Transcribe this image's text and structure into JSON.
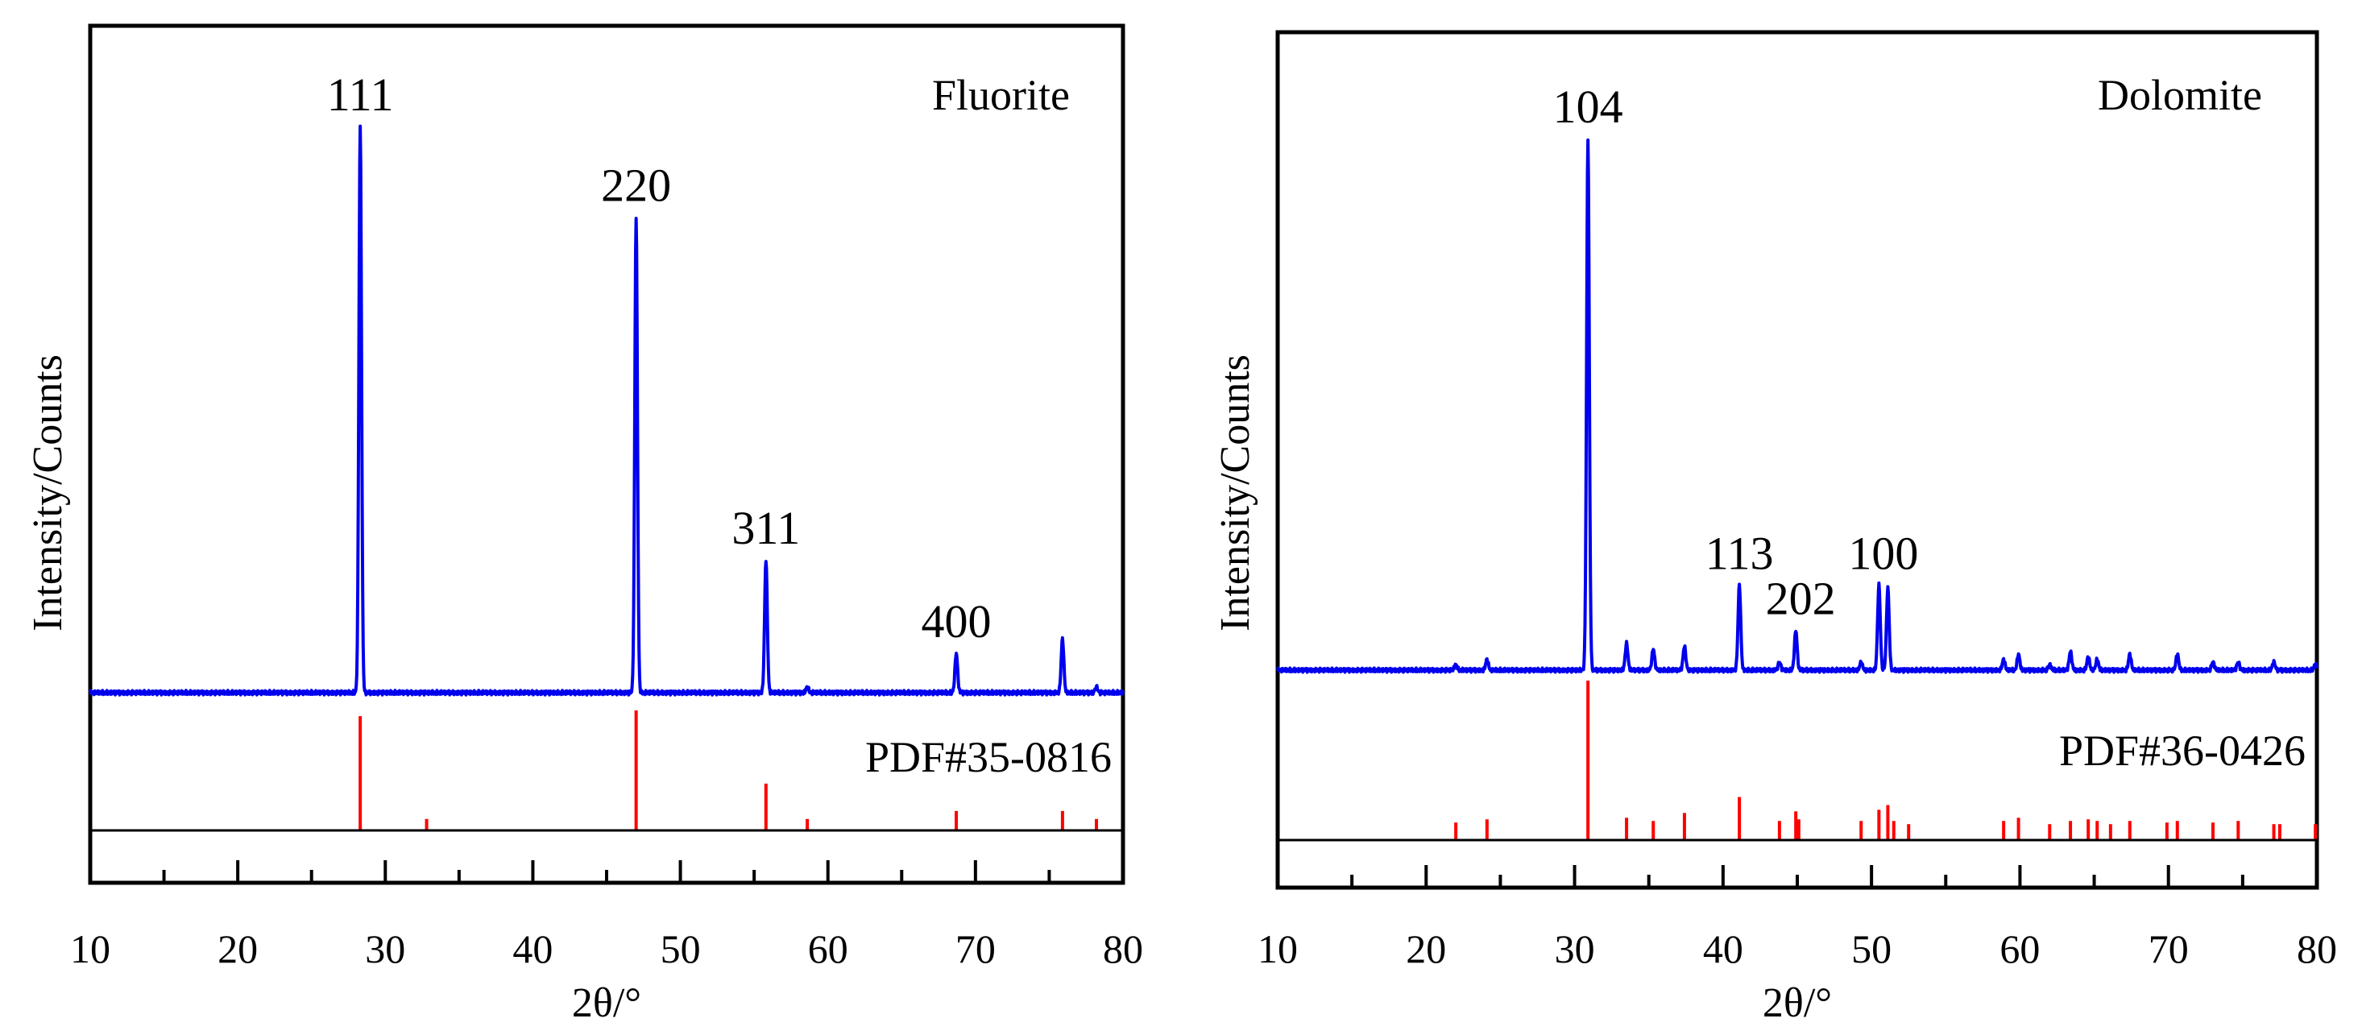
{
  "chart_data": [
    {
      "type": "line",
      "name": "Fluorite",
      "xlabel": "2θ/°",
      "ylabel": "Intensity/Counts",
      "xlim": [
        10,
        80
      ],
      "xticks": [
        10,
        20,
        30,
        40,
        50,
        60,
        70,
        80
      ],
      "xticks_minor": [
        15,
        25,
        35,
        45,
        55,
        65,
        75
      ],
      "peak_labels": [
        {
          "text": "111",
          "x": 28.3
        },
        {
          "text": "220",
          "x": 47.0
        },
        {
          "text": "311",
          "x": 55.8
        },
        {
          "text": "400",
          "x": 68.7
        }
      ],
      "series": [
        {
          "name": "Fluorite XRD",
          "color": "#0000ee",
          "baseline": 0.05,
          "peaks": [
            {
              "x": 28.3,
              "y": 1.0
            },
            {
              "x": 47.0,
              "y": 0.84
            },
            {
              "x": 55.8,
              "y": 0.235
            },
            {
              "x": 58.6,
              "y": 0.01
            },
            {
              "x": 68.7,
              "y": 0.07
            },
            {
              "x": 75.9,
              "y": 0.095
            },
            {
              "x": 78.2,
              "y": 0.01
            }
          ]
        },
        {
          "name": "PDF#35-0816",
          "color": "#ff0000",
          "type": "stick",
          "peaks": [
            {
              "x": 28.3,
              "y": 1.0
            },
            {
              "x": 32.8,
              "y": 0.1
            },
            {
              "x": 47.0,
              "y": 1.05
            },
            {
              "x": 55.8,
              "y": 0.41
            },
            {
              "x": 58.6,
              "y": 0.1
            },
            {
              "x": 68.7,
              "y": 0.17
            },
            {
              "x": 75.9,
              "y": 0.17
            },
            {
              "x": 78.2,
              "y": 0.1
            }
          ]
        }
      ],
      "reference_label": "PDF#35-0816"
    },
    {
      "type": "line",
      "name": "Dolomite",
      "xlabel": "2θ/°",
      "ylabel": "Intensity/Counts",
      "xlim": [
        10,
        80
      ],
      "xticks": [
        10,
        20,
        30,
        40,
        50,
        60,
        70,
        80
      ],
      "xticks_minor": [
        15,
        25,
        35,
        45,
        55,
        65,
        75
      ],
      "peak_labels": [
        {
          "text": "104",
          "x": 30.9
        },
        {
          "text": "113",
          "x": 41.1
        },
        {
          "text": "202",
          "x": 44.9
        },
        {
          "text": "100",
          "x": 50.8
        }
      ],
      "series": [
        {
          "name": "Dolomite XRD",
          "color": "#0000ee",
          "baseline": 0.03,
          "peaks": [
            {
              "x": 22.0,
              "y": 0.01
            },
            {
              "x": 24.1,
              "y": 0.02
            },
            {
              "x": 30.9,
              "y": 1.0
            },
            {
              "x": 33.5,
              "y": 0.05
            },
            {
              "x": 35.3,
              "y": 0.04
            },
            {
              "x": 37.4,
              "y": 0.045
            },
            {
              "x": 41.1,
              "y": 0.16
            },
            {
              "x": 43.8,
              "y": 0.015
            },
            {
              "x": 44.9,
              "y": 0.075
            },
            {
              "x": 49.3,
              "y": 0.015
            },
            {
              "x": 50.5,
              "y": 0.16
            },
            {
              "x": 51.1,
              "y": 0.155
            },
            {
              "x": 58.9,
              "y": 0.02
            },
            {
              "x": 59.9,
              "y": 0.03
            },
            {
              "x": 62.0,
              "y": 0.01
            },
            {
              "x": 63.4,
              "y": 0.035
            },
            {
              "x": 64.6,
              "y": 0.025
            },
            {
              "x": 65.2,
              "y": 0.02
            },
            {
              "x": 67.4,
              "y": 0.03
            },
            {
              "x": 70.6,
              "y": 0.03
            },
            {
              "x": 73.0,
              "y": 0.015
            },
            {
              "x": 74.7,
              "y": 0.015
            },
            {
              "x": 77.1,
              "y": 0.015
            },
            {
              "x": 79.9,
              "y": 0.01
            }
          ]
        },
        {
          "name": "PDF#36-0426",
          "color": "#ff0000",
          "type": "stick",
          "peaks": [
            {
              "x": 22.0,
              "y": 0.11
            },
            {
              "x": 24.1,
              "y": 0.13
            },
            {
              "x": 30.9,
              "y": 1.0
            },
            {
              "x": 33.5,
              "y": 0.14
            },
            {
              "x": 35.3,
              "y": 0.12
            },
            {
              "x": 37.4,
              "y": 0.17
            },
            {
              "x": 41.1,
              "y": 0.27
            },
            {
              "x": 43.8,
              "y": 0.12
            },
            {
              "x": 44.9,
              "y": 0.18
            },
            {
              "x": 45.1,
              "y": 0.13
            },
            {
              "x": 49.3,
              "y": 0.12
            },
            {
              "x": 50.5,
              "y": 0.19
            },
            {
              "x": 51.1,
              "y": 0.22
            },
            {
              "x": 51.5,
              "y": 0.12
            },
            {
              "x": 52.5,
              "y": 0.1
            },
            {
              "x": 58.9,
              "y": 0.12
            },
            {
              "x": 59.9,
              "y": 0.14
            },
            {
              "x": 62.0,
              "y": 0.1
            },
            {
              "x": 63.4,
              "y": 0.12
            },
            {
              "x": 64.6,
              "y": 0.13
            },
            {
              "x": 65.2,
              "y": 0.12
            },
            {
              "x": 66.1,
              "y": 0.1
            },
            {
              "x": 67.4,
              "y": 0.12
            },
            {
              "x": 69.9,
              "y": 0.11
            },
            {
              "x": 70.6,
              "y": 0.12
            },
            {
              "x": 73.0,
              "y": 0.11
            },
            {
              "x": 74.7,
              "y": 0.12
            },
            {
              "x": 77.1,
              "y": 0.1
            },
            {
              "x": 77.5,
              "y": 0.1
            },
            {
              "x": 79.9,
              "y": 0.1
            }
          ]
        }
      ],
      "reference_label": "PDF#36-0426"
    }
  ]
}
